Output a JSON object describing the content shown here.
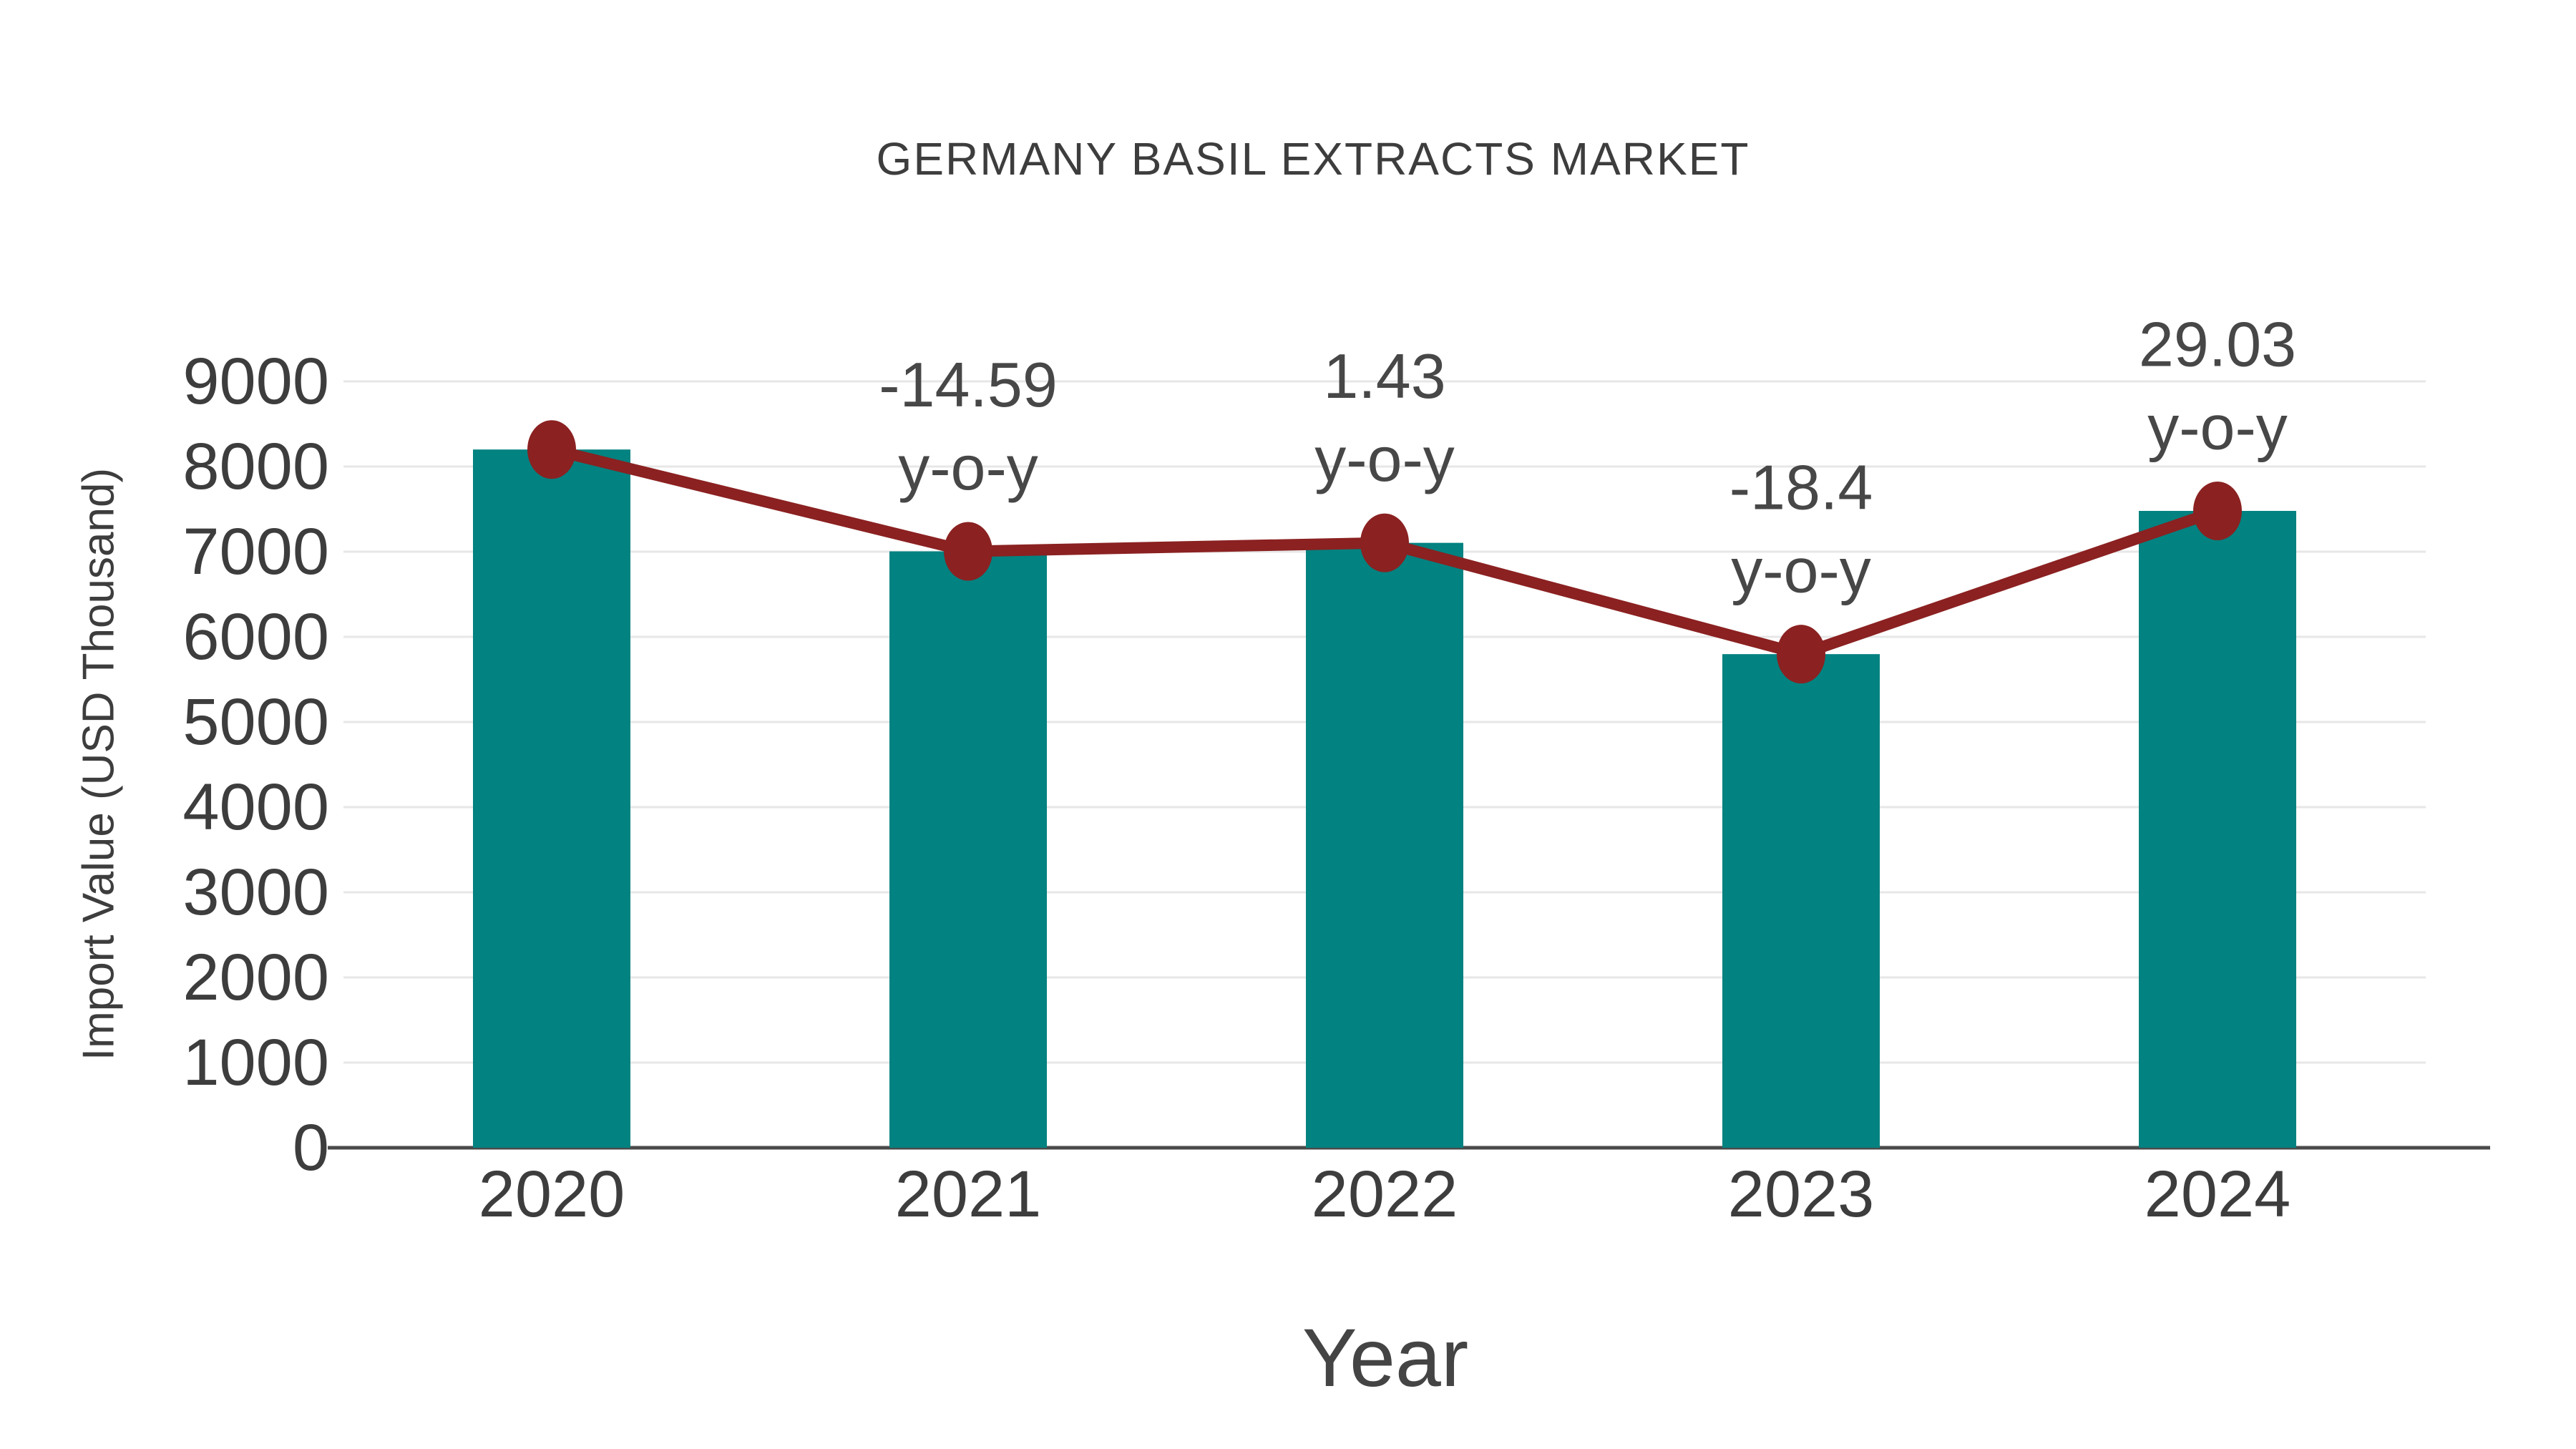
{
  "title": "GERMANY BASIL EXTRACTS MARKET",
  "colors": {
    "bar": "#028280",
    "line": "#8B2121",
    "marker": "#8B2121",
    "title_text": "#3d3d3d",
    "tick_text": "#3d3d3d",
    "annotation_text": "#474747",
    "grid": "#e7e7e7",
    "axis_line": "#4a4a4a",
    "background": "#ffffff"
  },
  "chart_data": {
    "type": "bar",
    "overlay": "line",
    "title": "GERMANY BASIL EXTRACTS MARKET",
    "xlabel": "Year",
    "ylabel": "Import Value (USD Thousand)",
    "categories": [
      "2020",
      "2021",
      "2022",
      "2023",
      "2024"
    ],
    "series": [
      {
        "name": "Import Value bars",
        "type": "bar",
        "values": [
          8200,
          7004,
          7104,
          5797,
          7479
        ]
      },
      {
        "name": "Import Value trend line",
        "type": "line",
        "values": [
          8200,
          7004,
          7104,
          5797,
          7479
        ]
      }
    ],
    "annotations": [
      {
        "category": "2021",
        "line1": "-14.59",
        "line2": "y-o-y"
      },
      {
        "category": "2022",
        "line1": "1.43",
        "line2": "y-o-y"
      },
      {
        "category": "2023",
        "line1": "-18.4",
        "line2": "y-o-y"
      },
      {
        "category": "2024",
        "line1": "29.03",
        "line2": "y-o-y"
      }
    ],
    "ylim": [
      0,
      9000
    ],
    "ytick_step": 1000,
    "ytick_labels": [
      "0",
      "1000",
      "2000",
      "3000",
      "4000",
      "5000",
      "6000",
      "7000",
      "8000",
      "9000"
    ],
    "grid": "horizontal",
    "legend": "none"
  }
}
